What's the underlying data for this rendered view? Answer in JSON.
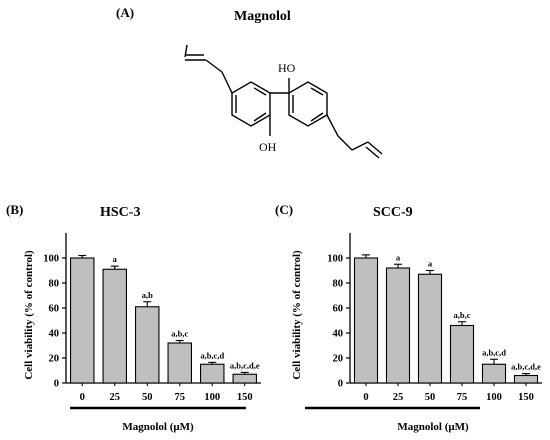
{
  "structure": {
    "panel_label": "(A)",
    "title": "Magnolol",
    "atom_labels": [
      "HO",
      "OH"
    ]
  },
  "colors": {
    "bar_fill": "#bfbfbf",
    "bar_stroke": "#000000"
  },
  "chart_data": [
    {
      "type": "bar",
      "panel_label": "(B)",
      "title": "HSC-3",
      "categories": [
        "0",
        "25",
        "50",
        "75",
        "100",
        "150"
      ],
      "values": [
        100,
        91,
        61,
        32,
        15,
        7
      ],
      "errors": [
        2,
        2.5,
        4,
        2,
        1.5,
        1.5
      ],
      "annotations": [
        "",
        "a",
        "a,b",
        "a,b,c",
        "a,b,c,d",
        "a,b,c,d,e"
      ],
      "ylabel": "Cell viability (% of control)",
      "xlabel": "Magnolol (μM)",
      "ylim": [
        0,
        120
      ],
      "yticks": [
        0,
        20,
        40,
        60,
        80,
        100
      ],
      "grid": false
    },
    {
      "type": "bar",
      "panel_label": "(C)",
      "title": "SCC-9",
      "categories": [
        "0",
        "25",
        "50",
        "75",
        "100",
        "150"
      ],
      "values": [
        100,
        92,
        87,
        46,
        15,
        6
      ],
      "errors": [
        2.5,
        3,
        3,
        3,
        4,
        1.5
      ],
      "annotations": [
        "",
        "a",
        "a",
        "a,b,c",
        "a,b,c,d",
        "a,b,c,d,e"
      ],
      "ylabel": "Cell viability (% of control)",
      "xlabel": "Magnolol (μM)",
      "ylim": [
        0,
        120
      ],
      "yticks": [
        0,
        20,
        40,
        60,
        80,
        100
      ],
      "grid": false
    }
  ]
}
